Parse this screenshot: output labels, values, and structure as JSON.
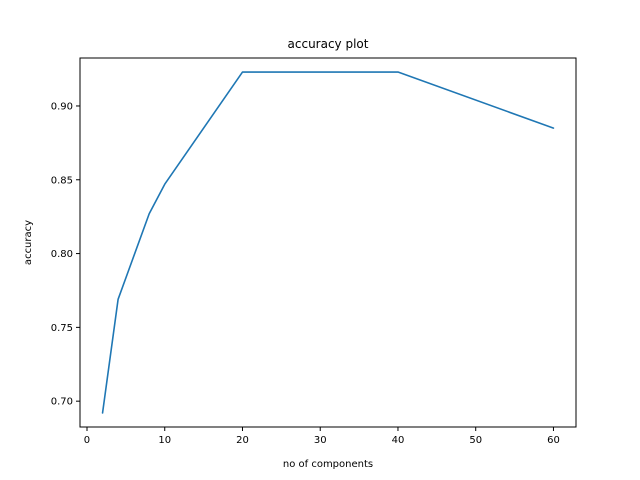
{
  "chart_data": {
    "type": "line",
    "title": "accuracy plot",
    "xlabel": "no of components",
    "ylabel": "accuracy",
    "xlim": [
      -0.9,
      62.9
    ],
    "ylim": [
      0.6825,
      0.9325
    ],
    "xticks": [
      0,
      10,
      20,
      30,
      40,
      50,
      60
    ],
    "xtick_labels": [
      "0",
      "10",
      "20",
      "30",
      "40",
      "50",
      "60"
    ],
    "yticks": [
      0.7,
      0.75,
      0.8,
      0.85,
      0.9
    ],
    "ytick_labels": [
      "0.70",
      "0.75",
      "0.80",
      "0.85",
      "0.90"
    ],
    "grid": false,
    "series": [
      {
        "color": "#1f77b4",
        "x": [
          2,
          4,
          8,
          10,
          20,
          40,
          60
        ],
        "y": [
          0.692,
          0.769,
          0.827,
          0.847,
          0.923,
          0.923,
          0.885
        ]
      }
    ]
  }
}
